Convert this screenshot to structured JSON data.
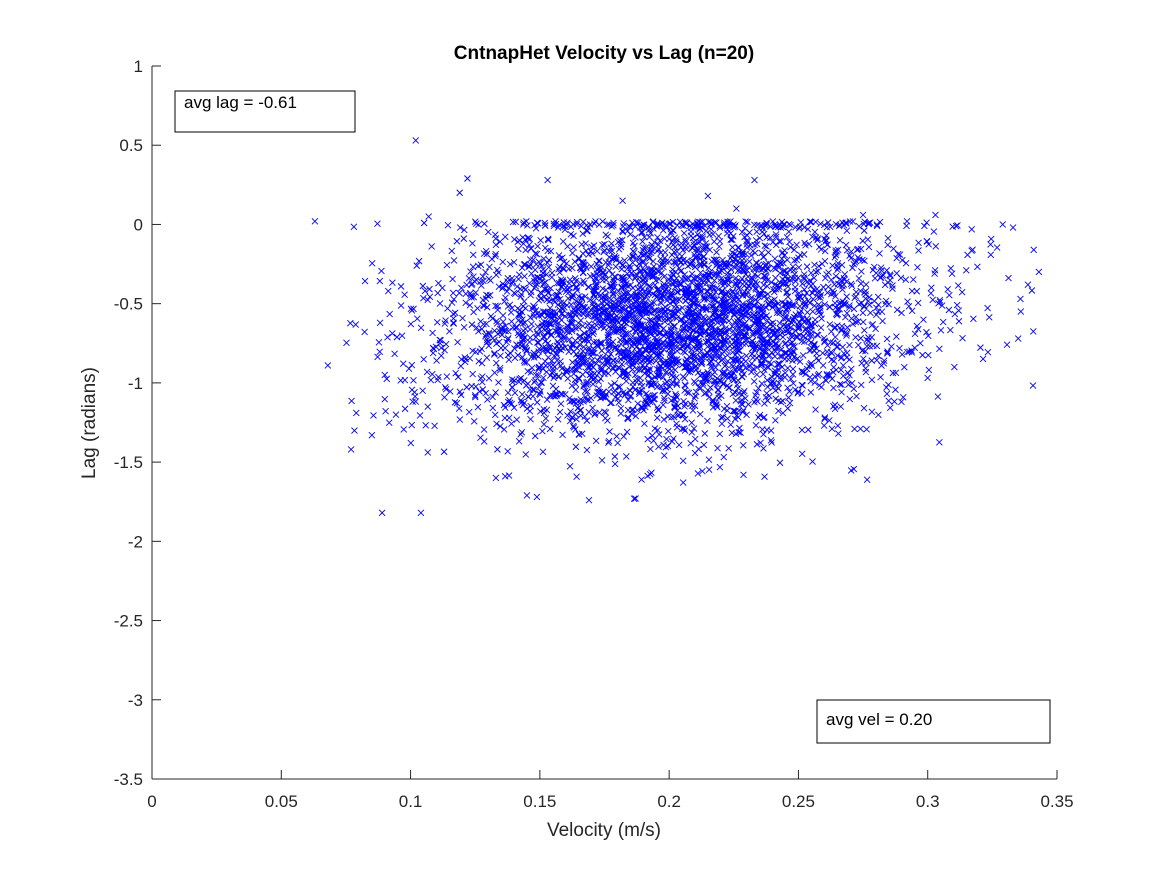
{
  "chart_data": {
    "type": "scatter",
    "title": "CntnapHet Velocity vs Lag (n=20)",
    "xlabel": "Velocity (m/s)",
    "ylabel": "Lag (radians)",
    "xlim": [
      0,
      0.35
    ],
    "ylim": [
      -3.5,
      1
    ],
    "xticks": [
      0,
      0.05,
      0.1,
      0.15,
      0.2,
      0.25,
      0.3,
      0.35
    ],
    "xtick_labels": [
      "0",
      "0.05",
      "0.1",
      "0.15",
      "0.2",
      "0.25",
      "0.3",
      "0.35"
    ],
    "yticks": [
      1,
      0.5,
      0,
      -0.5,
      -1,
      -1.5,
      -2,
      -2.5,
      -3,
      -3.5
    ],
    "ytick_labels": [
      "1",
      "0.5",
      "0",
      "-0.5",
      "-1",
      "-1.5",
      "-2",
      "-2.5",
      "-3",
      "-3.5"
    ],
    "grid": false,
    "marker": "x",
    "color": "#0000ff",
    "series_summary": {
      "approx_points": 4000,
      "velocity_mean": 0.2,
      "velocity_sd": 0.045,
      "velocity_range": [
        0.063,
        0.345
      ],
      "lag_mean": -0.61,
      "lag_sd": 0.36,
      "lag_range": [
        -1.82,
        0.53
      ]
    },
    "points": [
      [
        0.102,
        0.53
      ],
      [
        0.063,
        0.02
      ],
      [
        0.122,
        0.29
      ],
      [
        0.233,
        0.28
      ],
      [
        0.153,
        0.28
      ],
      [
        0.119,
        0.2
      ],
      [
        0.068,
        -0.89
      ],
      [
        0.077,
        -1.42
      ],
      [
        0.079,
        -1.19
      ],
      [
        0.089,
        -1.82
      ],
      [
        0.104,
        -1.82
      ],
      [
        0.145,
        -1.71
      ],
      [
        0.169,
        -1.74
      ],
      [
        0.187,
        -1.73
      ],
      [
        0.133,
        -1.6
      ],
      [
        0.343,
        -0.3
      ],
      [
        0.341,
        -0.16
      ],
      [
        0.335,
        -0.72
      ],
      [
        0.336,
        -0.55
      ],
      [
        0.333,
        -0.02
      ],
      [
        0.303,
        0.06
      ],
      [
        0.292,
        0.02
      ],
      [
        0.329,
        0.0
      ],
      [
        0.274,
        -1.29
      ],
      [
        0.263,
        -1.29
      ],
      [
        0.275,
        0.06
      ],
      [
        0.215,
        0.18
      ],
      [
        0.226,
        0.1
      ],
      [
        0.182,
        0.15
      ],
      [
        0.107,
        0.05
      ]
    ],
    "annotations": [
      {
        "text": "avg lag = -0.61",
        "position": "top-left"
      },
      {
        "text": "avg vel = 0.20",
        "position": "bottom-right"
      }
    ]
  }
}
